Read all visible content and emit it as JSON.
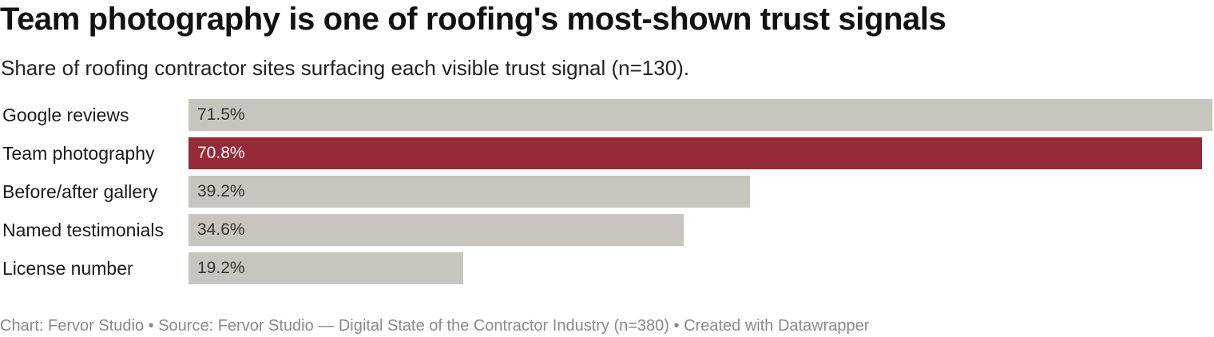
{
  "chart_title": "Team photography is one of roofing's most-shown trust signals",
  "chart_subtitle": "Share of roofing contractor sites surfacing each visible trust signal (n=130).",
  "footer": {
    "chart_credit": "Chart: Fervor Studio",
    "separator": "•",
    "source": "Source: Fervor Studio — Digital State of the Contractor Industry (n=380)",
    "created_with": "Created with Datawrapper"
  },
  "colors": {
    "default_bar": "#c8c5bf",
    "highlight_bar": "#962a38",
    "default_value_text": "#333333",
    "highlight_value_text": "#ffffff"
  },
  "chart_data": {
    "type": "bar",
    "orientation": "horizontal",
    "categories": [
      "Google reviews",
      "Team photography",
      "Before/after gallery",
      "Named testimonials",
      "License number"
    ],
    "values": [
      71.5,
      70.8,
      39.2,
      34.6,
      19.2
    ],
    "value_labels": [
      "71.5%",
      "70.8%",
      "39.2%",
      "34.6%",
      "19.2%"
    ],
    "unit": "%",
    "highlighted": [
      "Team photography"
    ],
    "xlim": [
      0,
      71.5
    ],
    "grid": false,
    "legend": "none"
  }
}
